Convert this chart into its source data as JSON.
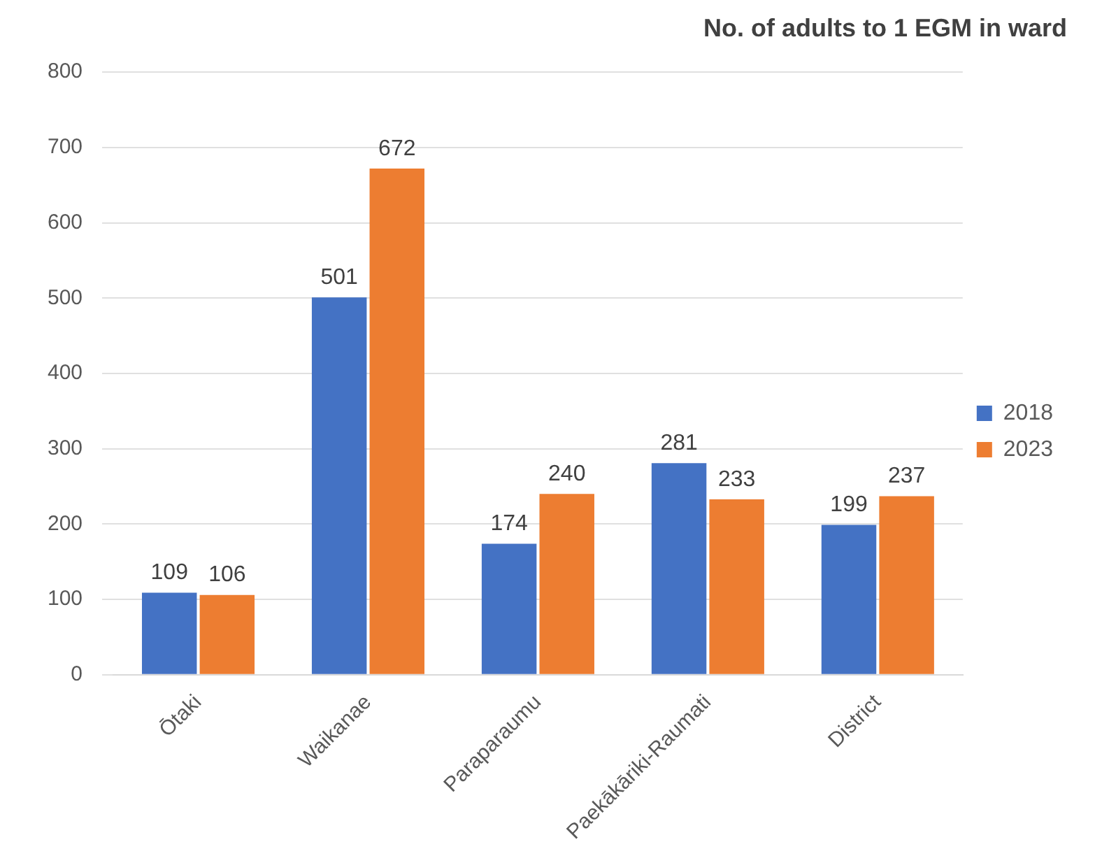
{
  "chart_data": {
    "type": "bar",
    "title": "No. of adults to 1 EGM in ward",
    "categories": [
      "Ōtaki",
      "Waikanae",
      "Paraparaumu",
      "Paekākāriki-Raumati",
      "District"
    ],
    "series": [
      {
        "name": "2018",
        "color": "#4472c4",
        "values": [
          109,
          501,
          174,
          281,
          199
        ]
      },
      {
        "name": "2023",
        "color": "#ed7d31",
        "values": [
          106,
          672,
          240,
          233,
          237
        ]
      }
    ],
    "ylim": [
      0,
      800
    ],
    "yticks": [
      0,
      100,
      200,
      300,
      400,
      500,
      600,
      700,
      800
    ],
    "grid": "y",
    "legend": "right",
    "data_labels": true
  }
}
